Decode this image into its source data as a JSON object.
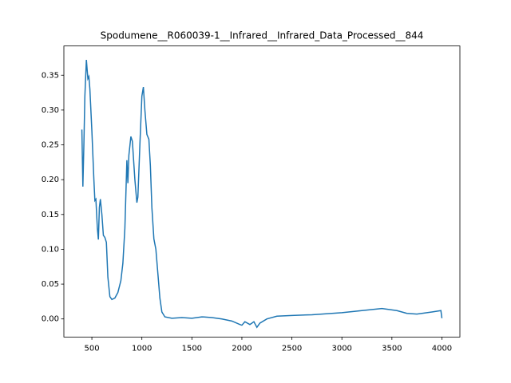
{
  "chart_data": {
    "type": "line",
    "title": "Spodumene__R060039-1__Infrared__Infrared_Data_Processed__844",
    "series": [
      {
        "color": "#1f77b4",
        "x": [
          400,
          410,
          420,
          430,
          445,
          460,
          470,
          480,
          500,
          520,
          530,
          540,
          555,
          565,
          575,
          585,
          600,
          615,
          630,
          645,
          660,
          680,
          700,
          730,
          760,
          790,
          810,
          830,
          850,
          860,
          870,
          890,
          905,
          930,
          950,
          960,
          980,
          1000,
          1015,
          1030,
          1050,
          1070,
          1085,
          1100,
          1120,
          1140,
          1160,
          1180,
          1200,
          1230,
          1300,
          1400,
          1500,
          1600,
          1700,
          1800,
          1900,
          1980,
          2000,
          2030,
          2080,
          2120,
          2150,
          2180,
          2250,
          2350,
          2500,
          2700,
          3000,
          3200,
          3400,
          3550,
          3650,
          3750,
          3900,
          3990,
          4000
        ],
        "values": [
          0.272,
          0.19,
          0.25,
          0.32,
          0.372,
          0.345,
          0.348,
          0.33,
          0.27,
          0.2,
          0.17,
          0.172,
          0.13,
          0.114,
          0.16,
          0.172,
          0.15,
          0.12,
          0.117,
          0.11,
          0.06,
          0.032,
          0.028,
          0.03,
          0.038,
          0.055,
          0.08,
          0.13,
          0.228,
          0.195,
          0.235,
          0.262,
          0.255,
          0.2,
          0.167,
          0.175,
          0.25,
          0.32,
          0.333,
          0.3,
          0.265,
          0.258,
          0.22,
          0.16,
          0.115,
          0.1,
          0.065,
          0.03,
          0.01,
          0.003,
          0.001,
          0.002,
          0.001,
          0.003,
          0.002,
          0.0,
          -0.003,
          -0.008,
          -0.009,
          -0.004,
          -0.008,
          -0.004,
          -0.012,
          -0.006,
          0.0,
          0.004,
          0.005,
          0.006,
          0.009,
          0.012,
          0.015,
          0.012,
          0.008,
          0.007,
          0.01,
          0.012,
          0.001
        ]
      }
    ],
    "xlim": [
      220,
      4180
    ],
    "ylim": [
      -0.026,
      0.392
    ],
    "xticks": [
      500,
      1000,
      1500,
      2000,
      2500,
      3000,
      3500,
      4000
    ],
    "yticks": [
      {
        "value": 0,
        "label": "0.00"
      },
      {
        "value": 0.05,
        "label": "0.05"
      },
      {
        "value": 0.1,
        "label": "0.10"
      },
      {
        "value": 0.15,
        "label": "0.15"
      },
      {
        "value": 0.2,
        "label": "0.20"
      },
      {
        "value": 0.25,
        "label": "0.25"
      },
      {
        "value": 0.3,
        "label": "0.30"
      },
      {
        "value": 0.35,
        "label": "0.35"
      }
    ]
  }
}
